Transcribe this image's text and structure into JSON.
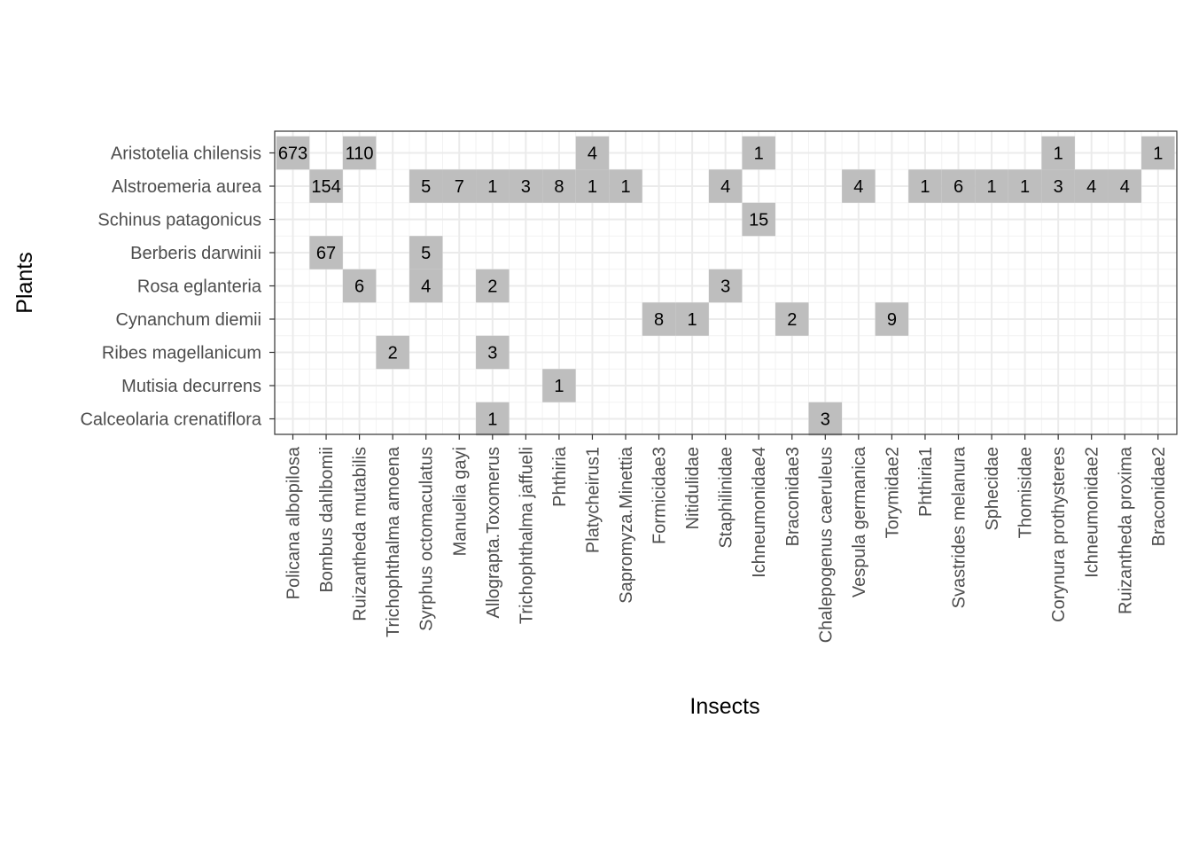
{
  "chart_data": {
    "type": "heatmap",
    "xlabel": "Insects",
    "ylabel": "Plants",
    "grid": true,
    "fill_color": "#bebebe",
    "x_categories": [
      "Policana albopilosa",
      "Bombus dahlbomii",
      "Ruizantheda mutabilis",
      "Trichophthalma amoena",
      "Syrphus octomaculatus",
      "Manuelia gayi",
      "Allograpta.Toxomerus",
      "Trichophthalma jaffueli",
      "Phthiria",
      "Platycheirus1",
      "Sapromyza.Minettia",
      "Formicidae3",
      "Nitidulidae",
      "Staphilinidae",
      "Ichneumonidae4",
      "Braconidae3",
      "Chalepogenus caeruleus",
      "Vespula germanica",
      "Torymidae2",
      "Phthiria1",
      "Svastrides melanura",
      "Sphecidae",
      "Thomisidae",
      "Corynura prothysteres",
      "Ichneumonidae2",
      "Ruizantheda proxima",
      "Braconidae2"
    ],
    "y_categories": [
      "Aristotelia chilensis",
      "Alstroemeria aurea",
      "Schinus patagonicus",
      "Berberis darwinii",
      "Rosa eglanteria",
      "Cynanchum diemii",
      "Ribes magellanicum",
      "Mutisia decurrens",
      "Calceolaria crenatiflora"
    ],
    "cells": [
      {
        "x": "Policana albopilosa",
        "y": "Aristotelia chilensis",
        "value": 673
      },
      {
        "x": "Ruizantheda mutabilis",
        "y": "Aristotelia chilensis",
        "value": 110
      },
      {
        "x": "Platycheirus1",
        "y": "Aristotelia chilensis",
        "value": 4
      },
      {
        "x": "Ichneumonidae4",
        "y": "Aristotelia chilensis",
        "value": 1
      },
      {
        "x": "Corynura prothysteres",
        "y": "Aristotelia chilensis",
        "value": 1
      },
      {
        "x": "Braconidae2",
        "y": "Aristotelia chilensis",
        "value": 1
      },
      {
        "x": "Bombus dahlbomii",
        "y": "Alstroemeria aurea",
        "value": 154
      },
      {
        "x": "Syrphus octomaculatus",
        "y": "Alstroemeria aurea",
        "value": 5
      },
      {
        "x": "Manuelia gayi",
        "y": "Alstroemeria aurea",
        "value": 7
      },
      {
        "x": "Allograpta.Toxomerus",
        "y": "Alstroemeria aurea",
        "value": 1
      },
      {
        "x": "Trichophthalma jaffueli",
        "y": "Alstroemeria aurea",
        "value": 3
      },
      {
        "x": "Phthiria",
        "y": "Alstroemeria aurea",
        "value": 8
      },
      {
        "x": "Platycheirus1",
        "y": "Alstroemeria aurea",
        "value": 1
      },
      {
        "x": "Sapromyza.Minettia",
        "y": "Alstroemeria aurea",
        "value": 1
      },
      {
        "x": "Staphilinidae",
        "y": "Alstroemeria aurea",
        "value": 4
      },
      {
        "x": "Vespula germanica",
        "y": "Alstroemeria aurea",
        "value": 4
      },
      {
        "x": "Phthiria1",
        "y": "Alstroemeria aurea",
        "value": 1
      },
      {
        "x": "Svastrides melanura",
        "y": "Alstroemeria aurea",
        "value": 6
      },
      {
        "x": "Sphecidae",
        "y": "Alstroemeria aurea",
        "value": 1
      },
      {
        "x": "Thomisidae",
        "y": "Alstroemeria aurea",
        "value": 1
      },
      {
        "x": "Corynura prothysteres",
        "y": "Alstroemeria aurea",
        "value": 3
      },
      {
        "x": "Ichneumonidae2",
        "y": "Alstroemeria aurea",
        "value": 4
      },
      {
        "x": "Ruizantheda proxima",
        "y": "Alstroemeria aurea",
        "value": 4
      },
      {
        "x": "Ichneumonidae4",
        "y": "Schinus patagonicus",
        "value": 15
      },
      {
        "x": "Bombus dahlbomii",
        "y": "Berberis darwinii",
        "value": 67
      },
      {
        "x": "Syrphus octomaculatus",
        "y": "Berberis darwinii",
        "value": 5
      },
      {
        "x": "Ruizantheda mutabilis",
        "y": "Rosa eglanteria",
        "value": 6
      },
      {
        "x": "Syrphus octomaculatus",
        "y": "Rosa eglanteria",
        "value": 4
      },
      {
        "x": "Allograpta.Toxomerus",
        "y": "Rosa eglanteria",
        "value": 2
      },
      {
        "x": "Staphilinidae",
        "y": "Rosa eglanteria",
        "value": 3
      },
      {
        "x": "Formicidae3",
        "y": "Cynanchum diemii",
        "value": 8
      },
      {
        "x": "Nitidulidae",
        "y": "Cynanchum diemii",
        "value": 1
      },
      {
        "x": "Braconidae3",
        "y": "Cynanchum diemii",
        "value": 2
      },
      {
        "x": "Torymidae2",
        "y": "Cynanchum diemii",
        "value": 9
      },
      {
        "x": "Trichophthalma amoena",
        "y": "Ribes magellanicum",
        "value": 2
      },
      {
        "x": "Allograpta.Toxomerus",
        "y": "Ribes magellanicum",
        "value": 3
      },
      {
        "x": "Phthiria",
        "y": "Mutisia decurrens",
        "value": 1
      },
      {
        "x": "Allograpta.Toxomerus",
        "y": "Calceolaria crenatiflora",
        "value": 1
      },
      {
        "x": "Chalepogenus caeruleus",
        "y": "Calceolaria crenatiflora",
        "value": 3
      }
    ]
  }
}
